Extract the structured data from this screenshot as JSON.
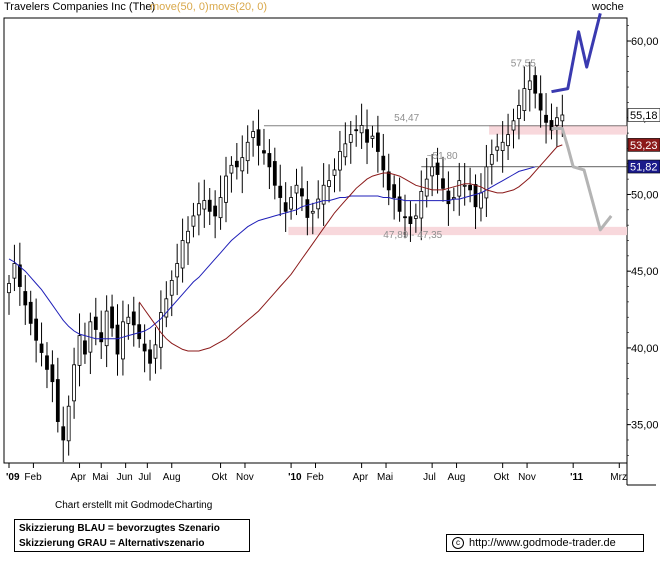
{
  "header": {
    "title": "Travelers Companies Inc (The)",
    "ma1": "move(50, 0)",
    "ma2": "movs(20, 0)",
    "period": "woche"
  },
  "chart_data": {
    "type": "candlestick",
    "period": "woche",
    "y_axis": {
      "ticks": [
        35,
        40,
        45,
        50,
        55,
        60
      ],
      "tick_labels": [
        "35,00",
        "40,00",
        "45,00",
        "50,00",
        "55,00",
        "60,00"
      ],
      "range": [
        32.5,
        61.5
      ],
      "side": "right"
    },
    "x_axis": {
      "tick_labels": [
        {
          "label": "'09",
          "week": 1
        },
        {
          "label": "Feb",
          "week": 5.5
        },
        {
          "label": "Apr",
          "week": 14
        },
        {
          "label": "Mai",
          "week": 18
        },
        {
          "label": "Jun",
          "week": 22.5
        },
        {
          "label": "Jul",
          "week": 26.5
        },
        {
          "label": "Aug",
          "week": 31
        },
        {
          "label": "Okt",
          "week": 40
        },
        {
          "label": "Nov",
          "week": 44.5
        },
        {
          "label": "'10",
          "week": 53
        },
        {
          "label": "Feb",
          "week": 57.5
        },
        {
          "label": "Apr",
          "week": 66
        },
        {
          "label": "Mai",
          "week": 70.5
        },
        {
          "label": "Jul",
          "week": 79
        },
        {
          "label": "Aug",
          "week": 83.5
        },
        {
          "label": "Okt",
          "week": 92
        },
        {
          "label": "Nov",
          "week": 96.5
        },
        {
          "label": "'11",
          "week": 105
        },
        {
          "label": "Mrz",
          "week": 113.5
        }
      ]
    },
    "candles_close": [
      44.2,
      45.5,
      44.0,
      42.8,
      41.6,
      40.5,
      39.7,
      38.6,
      37.8,
      35.2,
      34.0,
      36.2,
      38.9,
      40.8,
      39.6,
      41.7,
      41.2,
      40.4,
      42.4,
      41.3,
      39.6,
      41.7,
      42.0,
      41.5,
      40.6,
      39.8,
      39.0,
      40.2,
      42.3,
      43.2,
      44.4,
      45.5,
      47.0,
      47.6,
      48.6,
      49.4,
      49.6,
      48.9,
      48.6,
      49.8,
      51.2,
      51.9,
      51.8,
      52.4,
      53.4,
      54.1,
      53.2,
      52.7,
      51.8,
      50.6,
      49.8,
      48.9,
      49.8,
      50.6,
      49.9,
      48.5,
      48.9,
      49.7,
      50.6,
      50.9,
      51.6,
      52.8,
      53.3,
      53.9,
      54.2,
      54.5,
      53.4,
      53.8,
      52.8,
      51.6,
      50.3,
      49.8,
      48.9,
      48.5,
      48.1,
      48.6,
      50.2,
      51.0,
      51.8,
      51.3,
      50.4,
      49.4,
      49.8,
      50.9,
      50.6,
      50.3,
      49.2,
      50.1,
      51.8,
      52.6,
      53.1,
      53.4,
      53.9,
      54.8,
      55.8,
      56.9,
      57.4,
      56.6,
      55.5,
      54.7,
      54.2,
      55.0,
      55.18
    ],
    "ma_blue": [
      45.8,
      45.6,
      45.3,
      45.0,
      44.6,
      44.2,
      43.8,
      43.3,
      42.8,
      42.3,
      41.8,
      41.4,
      41.1,
      40.9,
      40.8,
      40.7,
      40.6,
      40.6,
      40.6,
      40.6,
      40.6,
      40.7,
      40.8,
      40.9,
      41.0,
      41.1,
      41.3,
      41.6,
      41.9,
      42.3,
      42.7,
      43.1,
      43.5,
      43.9,
      44.3,
      44.6,
      45.0,
      45.4,
      45.8,
      46.2,
      46.6,
      47.0,
      47.3,
      47.6,
      47.9,
      48.1,
      48.3,
      48.4,
      48.5,
      48.6,
      48.7,
      48.8,
      48.9,
      49.0,
      49.2,
      49.3,
      49.4,
      49.5,
      49.6,
      49.6,
      49.7,
      49.8,
      49.8,
      49.9,
      49.9,
      49.9,
      49.9,
      49.9,
      49.9,
      49.8,
      49.8,
      49.7,
      49.7,
      49.6,
      49.6,
      49.6,
      49.6,
      49.6,
      49.6,
      49.6,
      49.6,
      49.6,
      49.7,
      49.7,
      49.8,
      49.9,
      50.0,
      50.1,
      50.3,
      50.5,
      50.7,
      50.9,
      51.1,
      51.3,
      51.5,
      51.6,
      51.7,
      51.8
    ],
    "ma_red": [
      43.0,
      42.5,
      42.0,
      41.5,
      41.0,
      40.6,
      40.3,
      40.1,
      39.9,
      39.8,
      39.8,
      39.8,
      39.9,
      40.0,
      40.2,
      40.4,
      40.6,
      40.9,
      41.2,
      41.5,
      41.8,
      42.1,
      42.4,
      42.8,
      43.2,
      43.6,
      44.0,
      44.4,
      44.8,
      45.3,
      45.8,
      46.3,
      46.8,
      47.3,
      47.8,
      48.3,
      48.8,
      49.2,
      49.6,
      50.0,
      50.4,
      50.7,
      51.0,
      51.2,
      51.3,
      51.4,
      51.4,
      51.3,
      51.2,
      51.0,
      50.8,
      50.6,
      50.5,
      50.4,
      50.3,
      50.3,
      50.3,
      50.4,
      50.5,
      50.6,
      50.7,
      50.7,
      50.6,
      50.5,
      50.3,
      50.2,
      50.1,
      50.1,
      50.2,
      50.3,
      50.5,
      50.8,
      51.1,
      51.5,
      51.9,
      52.3,
      52.7,
      53.1,
      53.23
    ],
    "current_price": "55,18",
    "price_labels": [
      {
        "text": "55,18",
        "value": 55.18,
        "color": "#ffffff",
        "text_color": "#000000"
      },
      {
        "text": "53,23",
        "value": 53.23,
        "color": "#8b1a1a",
        "text_color": "#ffffff"
      },
      {
        "text": "51,82",
        "value": 51.82,
        "color": "#1a1a8b",
        "text_color": "#ffffff"
      }
    ],
    "annotations": {
      "high": {
        "text": "57,55",
        "value": 57.55
      },
      "resistance": {
        "text": "54,47",
        "value": 54.47
      },
      "level": {
        "text": "~51,80",
        "value": 51.8
      },
      "support_zone": {
        "text": "47,89 - 47,35",
        "low": 47.35,
        "high": 47.89
      },
      "upper_zone": {
        "low": 53.9,
        "high": 54.5
      }
    },
    "scenario_blue": [
      [
        101,
        56.7
      ],
      [
        104,
        56.9
      ],
      [
        106,
        60.6
      ],
      [
        107.5,
        58.3
      ],
      [
        110,
        61.8
      ]
    ],
    "scenario_gray": [
      [
        101,
        54.3
      ],
      [
        103,
        54.3
      ],
      [
        104,
        53.1
      ],
      [
        105,
        51.8
      ],
      [
        107,
        51.6
      ],
      [
        110,
        47.7
      ],
      [
        112,
        48.6
      ]
    ],
    "colors": {
      "candle": "#000000",
      "ma_blue": "#1f1fb8",
      "ma_red": "#8b1a1a",
      "scenario_blue": "#3a3ab0",
      "scenario_gray": "#b4b4b4",
      "zone": "#f8d8dc",
      "annotation_text": "#909090"
    }
  },
  "footer": {
    "credit": "Chart erstellt mit GodmodeCharting",
    "legend_blue": "Skizzierung BLAU = bevorzugtes Szenario",
    "legend_gray": "Skizzierung GRAU = Alternativszenario",
    "copyright_symbol": "c",
    "url": "http://www.godmode-trader.de"
  }
}
